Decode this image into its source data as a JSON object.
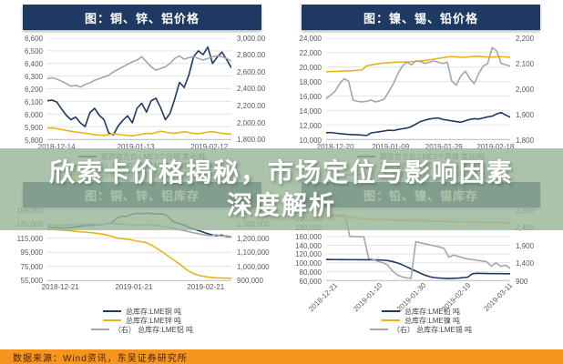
{
  "overlay": {
    "line1": "欣索卡价格揭秘，市场定位与影响因素",
    "line2": "深度解析"
  },
  "source_bar": {
    "text": "数据来源：Wind资讯，东吴证券研究所"
  },
  "colors": {
    "banner_bg": "#1e3a62",
    "navy": "#1f3864",
    "yellow": "#e7b419",
    "gray": "#a6a6a6",
    "overlay_green": "rgba(152,180,152,0.82)",
    "source_orange": "#f7941e"
  },
  "chart_data": [
    {
      "type": "line",
      "title": "图：铜、锌、铝价格",
      "legend_position": "bottom",
      "grid": true,
      "left_axis": {
        "range": [
          5800,
          6600
        ],
        "ticks": [
          "6,600",
          "6,500",
          "6,400",
          "6,300",
          "6,200",
          "6,100",
          "6,000",
          "5,900",
          "5,800"
        ]
      },
      "right_axis": {
        "range": [
          1800,
          3000
        ],
        "ticks": [
          "3,000.00",
          "2,800.00",
          "2,600.00",
          "2,400.00",
          "2,200.00",
          "2,000.00",
          "1,800.00"
        ]
      },
      "x_ticks": [
        {
          "label": "2018-12-14",
          "pos": 0.05
        },
        {
          "label": "2019-01-13",
          "pos": 0.48
        },
        {
          "label": "2019-02-12",
          "pos": 0.88
        }
      ],
      "series": [
        {
          "name": "期货官方价:LME3个月铜 美元/吨",
          "axis": "left",
          "color": "#1f3864",
          "values": [
            6105,
            6110,
            6095,
            6040,
            5990,
            5955,
            5975,
            5930,
            5900,
            6010,
            6045,
            5990,
            5955,
            5850,
            5835,
            5905,
            5950,
            5985,
            5930,
            6045,
            6085,
            6015,
            6105,
            6125,
            6050,
            5955,
            6005,
            6120,
            6250,
            6210,
            6310,
            6455,
            6500,
            6470,
            6530,
            6400,
            6450,
            6490,
            6430,
            6365
          ]
        },
        {
          "name": "（右）期货官方价:LME3个月锌 美元/吨",
          "axis": "right",
          "color": "#a6a6a6",
          "values": [
            2520,
            2530,
            2515,
            2490,
            2460,
            2430,
            2440,
            2420,
            2450,
            2470,
            2500,
            2520,
            2540,
            2560,
            2600,
            2630,
            2660,
            2690,
            2720,
            2740,
            2780,
            2720,
            2660,
            2620,
            2640,
            2660,
            2700,
            2760,
            2790,
            2750,
            2770,
            2780,
            2760,
            2740,
            2760,
            2780,
            2790,
            2780,
            2760,
            2730
          ]
        },
        {
          "name": "（右）期货官方价:LME3个月铝 美元/吨",
          "axis": "right",
          "color": "#e7b419",
          "values": [
            1930,
            1935,
            1925,
            1915,
            1905,
            1895,
            1885,
            1880,
            1870,
            1865,
            1855,
            1850,
            1845,
            1855,
            1865,
            1860,
            1850,
            1845,
            1840,
            1850,
            1860,
            1870,
            1865,
            1880,
            1895,
            1885,
            1875,
            1870,
            1880,
            1890,
            1880,
            1870,
            1865,
            1875,
            1885,
            1890,
            1880,
            1870,
            1865,
            1860
          ]
        }
      ]
    },
    {
      "type": "line",
      "title": "图：镍、锡、铅价格",
      "legend_position": "bottom",
      "grid": true,
      "left_axis": {
        "range": [
          10000,
          24000
        ],
        "ticks": [
          "24,000",
          "22,000",
          "20,000",
          "18,000",
          "16,000",
          "14,000",
          "12,000",
          "10,000"
        ]
      },
      "right_axis": {
        "range": [
          1800,
          2200
        ],
        "ticks": [
          "2,200",
          "2,100",
          "2,000",
          "1,900",
          "1,800"
        ]
      },
      "x_ticks": [
        {
          "label": "2018-12-20",
          "pos": 0.05
        },
        {
          "label": "2019-01-09",
          "pos": 0.35
        },
        {
          "label": "2019-01-29",
          "pos": 0.64
        },
        {
          "label": "2019-02-18",
          "pos": 0.92
        }
      ],
      "series": [
        {
          "name": "期货官方价:LME3个月镍 美元/吨",
          "axis": "left",
          "color": "#1f3864",
          "values": [
            10900,
            10930,
            10850,
            10780,
            10720,
            10670,
            10640,
            10610,
            10580,
            10520,
            10880,
            10960,
            11050,
            11150,
            11250,
            11200,
            11350,
            11450,
            11550,
            11750,
            12100,
            12450,
            12650,
            12800,
            12900,
            12950,
            12750,
            12650,
            12550,
            12450,
            12350,
            12550,
            12750,
            12850,
            12800,
            12950,
            13100,
            13200,
            13500,
            13700,
            13350,
            13050
          ]
        },
        {
          "name": "期货官方价:LME3个月锡 美元/吨",
          "axis": "left",
          "color": "#e7b419",
          "values": [
            19350,
            19380,
            19400,
            19420,
            19450,
            19480,
            19500,
            19550,
            19600,
            20150,
            20300,
            20400,
            20500,
            20550,
            20600,
            20650,
            20700,
            20680,
            20720,
            20750,
            20800,
            20850,
            20900,
            21000,
            21100,
            21200,
            21300,
            21400,
            21450,
            21420,
            21380,
            21350,
            21420,
            21500,
            21480,
            21430,
            21400,
            21380,
            21420,
            21450,
            21400,
            21380
          ]
        },
        {
          "name": "（右）期货官方价:LME3个月铅 美元/吨",
          "axis": "right",
          "color": "#a6a6a6",
          "values": [
            1960,
            1975,
            1990,
            2020,
            2040,
            2030,
            1955,
            1950,
            1948,
            1950,
            1955,
            1948,
            1952,
            1960,
            1990,
            2020,
            2060,
            2090,
            2105,
            2095,
            2110,
            2108,
            2100,
            2105,
            2110,
            2105,
            2100,
            2105,
            2030,
            2014,
            2050,
            2070,
            2040,
            2020,
            2060,
            2090,
            2100,
            2163,
            2150,
            2100,
            2095,
            2090
          ]
        }
      ]
    },
    {
      "type": "line",
      "title": "图：铜、锌、铝库存",
      "legend_position": "bottom",
      "grid": true,
      "left_axis": {
        "range": [
          55000,
          155000
        ],
        "ticks": [
          "155,000",
          "135,000",
          "115,000",
          "95,000",
          "75,000",
          "55,000"
        ]
      },
      "right_axis": {
        "range": [
          900000,
          1400000
        ],
        "ticks": [
          "1,400,000",
          "1,300,000",
          "1,200,000",
          "1,100,000",
          "1,000,000",
          "900,000"
        ]
      },
      "x_ticks": [
        {
          "label": "2018-12-21",
          "pos": 0.07
        },
        {
          "label": "2019-01-21",
          "pos": 0.47
        },
        {
          "label": "2019-02-21",
          "pos": 0.86
        }
      ],
      "series": [
        {
          "name": "总库存:LME铜 吨",
          "axis": "left",
          "color": "#1f3864",
          "values": [
            131000,
            130500,
            130000,
            129500,
            130000,
            130500,
            131500,
            132500,
            133000,
            133500,
            134000,
            134500,
            135500,
            137000,
            144000,
            146500,
            146000,
            149500,
            150500,
            150000,
            150800,
            150200,
            149600,
            150000,
            148000,
            140000,
            137000,
            135000,
            132000,
            129000,
            127000,
            124500,
            122000,
            120000,
            118500,
            119500,
            117500,
            117000
          ]
        },
        {
          "name": "总库存:LME锌 吨",
          "axis": "left",
          "color": "#e7b419",
          "values": [
            128000,
            127500,
            127000,
            126500,
            126000,
            125500,
            124500,
            124000,
            123500,
            123000,
            122000,
            121000,
            119500,
            117500,
            115500,
            114500,
            113500,
            112500,
            111000,
            110000,
            108500,
            105000,
            100500,
            96000,
            91000,
            86000,
            81000,
            76000,
            70000,
            66000,
            63000,
            61000,
            60000,
            59000,
            58500,
            58200,
            58000,
            57800
          ]
        },
        {
          "name": "（右） 总库存:LME铝 吨",
          "axis": "right",
          "color": "#a6a6a6",
          "values": [
            1295000,
            1293000,
            1291000,
            1292000,
            1294000,
            1296000,
            1298000,
            1300000,
            1302000,
            1300000,
            1298000,
            1300000,
            1302000,
            1305000,
            1303000,
            1300000,
            1298000,
            1295000,
            1292000,
            1295000,
            1298000,
            1295000,
            1290000,
            1285000,
            1280000,
            1272000,
            1265000,
            1258000,
            1250000,
            1242000,
            1235000,
            1228000,
            1222000,
            1218000,
            1225000,
            1215000,
            1218000,
            1212000
          ]
        }
      ]
    },
    {
      "type": "line",
      "title": "图：铅、镍、锡库存",
      "legend_position": "bottom",
      "grid": true,
      "x_rotate": true,
      "left_axis": {
        "range": [
          60000,
          220000
        ],
        "ticks": [
          "220,000",
          "200,000",
          "180,000",
          "160,000",
          "140,000",
          "120,000",
          "100,000",
          "80,000",
          "60,000"
        ]
      },
      "right_axis": {
        "range": [
          900,
          2900
        ],
        "ticks": [
          "2,900",
          "2,400",
          "1,900",
          "1,400",
          "900"
        ]
      },
      "x_ticks": [
        {
          "label": "2018-12-21",
          "pos": 0.04
        },
        {
          "label": "2019-01-10",
          "pos": 0.28
        },
        {
          "label": "2019-01-30",
          "pos": 0.52
        },
        {
          "label": "2019-02-19",
          "pos": 0.76
        },
        {
          "label": "2019-03-11",
          "pos": 0.99
        }
      ],
      "series": [
        {
          "name": "总库存:LME铅 吨",
          "axis": "left",
          "color": "#1f3864",
          "values": [
            107500,
            107400,
            107300,
            107200,
            107100,
            107000,
            107000,
            106900,
            106800,
            106800,
            106700,
            106500,
            106000,
            105000,
            103000,
            100000,
            96000,
            91000,
            86000,
            81000,
            76000,
            71500,
            68000,
            66000,
            65000,
            64500,
            64000,
            64500,
            65000,
            66000,
            67000,
            75000,
            76000,
            75800,
            75500,
            75300,
            75200,
            75100,
            75000,
            75000
          ]
        },
        {
          "name": "总库存:LME镍 吨",
          "axis": "left",
          "color": "#e7b419",
          "values": [
            207000,
            206500,
            206000,
            205500,
            205000,
            204000,
            203000,
            201500,
            200000,
            199000,
            198500,
            199000,
            198500,
            198000,
            197500,
            197000,
            196800,
            196500,
            196200,
            196000,
            195800,
            195500,
            195200,
            195000,
            194800,
            194500,
            194200,
            194000,
            193800,
            193500,
            193200,
            193000,
            192800,
            192500,
            192300,
            192200,
            192000,
            191800,
            191500,
            191300
          ]
        },
        {
          "name": "（右） 总库存:LME锡 吨",
          "axis": "right",
          "color": "#a6a6a6",
          "values": [
            2770,
            2768,
            2766,
            2764,
            2762,
            2150,
            2148,
            2145,
            2140,
            1530,
            1490,
            1440,
            1400,
            1340,
            1180,
            1060,
            1000,
            970,
            955,
            2000,
            1970,
            1940,
            1910,
            1880,
            1850,
            1810,
            1560,
            1620,
            1580,
            1540,
            1510,
            1490,
            1470,
            1450,
            1430,
            1300,
            1400,
            1300,
            1330,
            1240
          ]
        }
      ]
    }
  ]
}
